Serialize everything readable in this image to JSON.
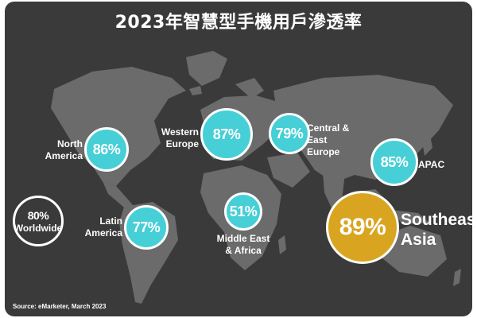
{
  "title": "2023年智慧型手機用戶滲透率",
  "source": "Source: eMarketer, March 2023",
  "colors": {
    "background": "#3b3a3a",
    "map": "#6b6b6b",
    "highlight": "#46cfd6",
    "featured": "#d9a521",
    "text": "#ffffff"
  },
  "chart_data": {
    "type": "map",
    "title": "2023年智慧型手機用戶滲透率",
    "unit": "%",
    "regions": [
      {
        "name": "North America",
        "value": 86
      },
      {
        "name": "Western Europe",
        "value": 87
      },
      {
        "name": "Central & East Europe",
        "value": 79
      },
      {
        "name": "APAC",
        "value": 85
      },
      {
        "name": "Latin America",
        "value": 77
      },
      {
        "name": "Middle East & Africa",
        "value": 51
      },
      {
        "name": "Southeast Asia",
        "value": 89
      },
      {
        "name": "Worldwide",
        "value": 80
      }
    ]
  },
  "labels": {
    "north_america": [
      "North",
      "America"
    ],
    "western_europe": [
      "Western",
      "Europe"
    ],
    "central_east_europe": [
      "Central & East",
      "Europe"
    ],
    "apac": [
      "APAC"
    ],
    "latin_america": [
      "Latin",
      "America"
    ],
    "middle_east_africa": [
      "Middle East",
      "& Africa"
    ],
    "southeast_asia": [
      "Southeast",
      "Asia"
    ]
  },
  "bubbles": {
    "north_america": "86%",
    "western_europe": "87%",
    "central_east_europe": "79%",
    "apac": "85%",
    "latin_america": "77%",
    "middle_east_africa": "51%",
    "southeast_asia": "89%",
    "worldwide": "80%",
    "worldwide_sub": "Worldwide"
  }
}
